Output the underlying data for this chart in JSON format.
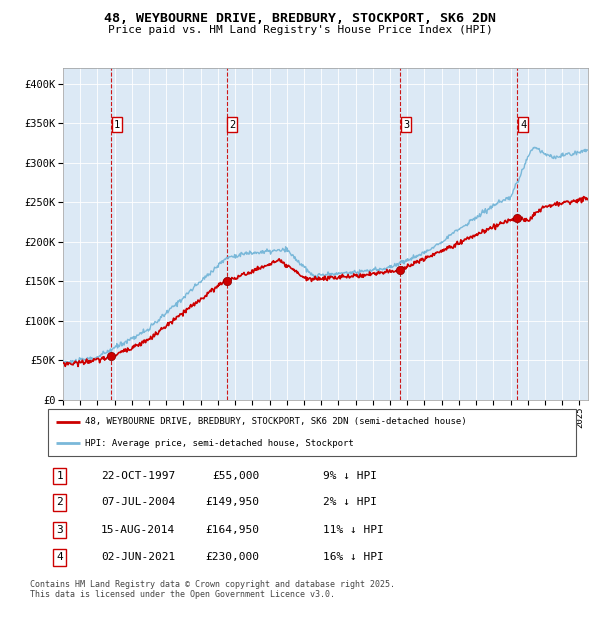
{
  "title_line1": "48, WEYBOURNE DRIVE, BREDBURY, STOCKPORT, SK6 2DN",
  "title_line2": "Price paid vs. HM Land Registry's House Price Index (HPI)",
  "bg_color": "#dce9f5",
  "hpi_line_color": "#7ab8d9",
  "price_line_color": "#cc0000",
  "sale_marker_color": "#cc0000",
  "vline_color": "#cc0000",
  "ylim": [
    0,
    420000
  ],
  "yticks": [
    0,
    50000,
    100000,
    150000,
    200000,
    250000,
    300000,
    350000,
    400000
  ],
  "ytick_labels": [
    "£0",
    "£50K",
    "£100K",
    "£150K",
    "£200K",
    "£250K",
    "£300K",
    "£350K",
    "£400K"
  ],
  "sales": [
    {
      "num": 1,
      "date_label": "22-OCT-1997",
      "price": 55000,
      "hpi_pct": "9%",
      "x_year": 1997.8
    },
    {
      "num": 2,
      "date_label": "07-JUL-2004",
      "price": 149950,
      "hpi_pct": "2%",
      "x_year": 2004.5
    },
    {
      "num": 3,
      "date_label": "15-AUG-2014",
      "price": 164950,
      "hpi_pct": "11%",
      "x_year": 2014.6
    },
    {
      "num": 4,
      "date_label": "02-JUN-2021",
      "price": 230000,
      "hpi_pct": "16%",
      "x_year": 2021.4
    }
  ],
  "legend_line1": "48, WEYBOURNE DRIVE, BREDBURY, STOCKPORT, SK6 2DN (semi-detached house)",
  "legend_line2": "HPI: Average price, semi-detached house, Stockport",
  "footer_line1": "Contains HM Land Registry data © Crown copyright and database right 2025.",
  "footer_line2": "This data is licensed under the Open Government Licence v3.0.",
  "xmin": 1995.0,
  "xmax": 2025.5
}
